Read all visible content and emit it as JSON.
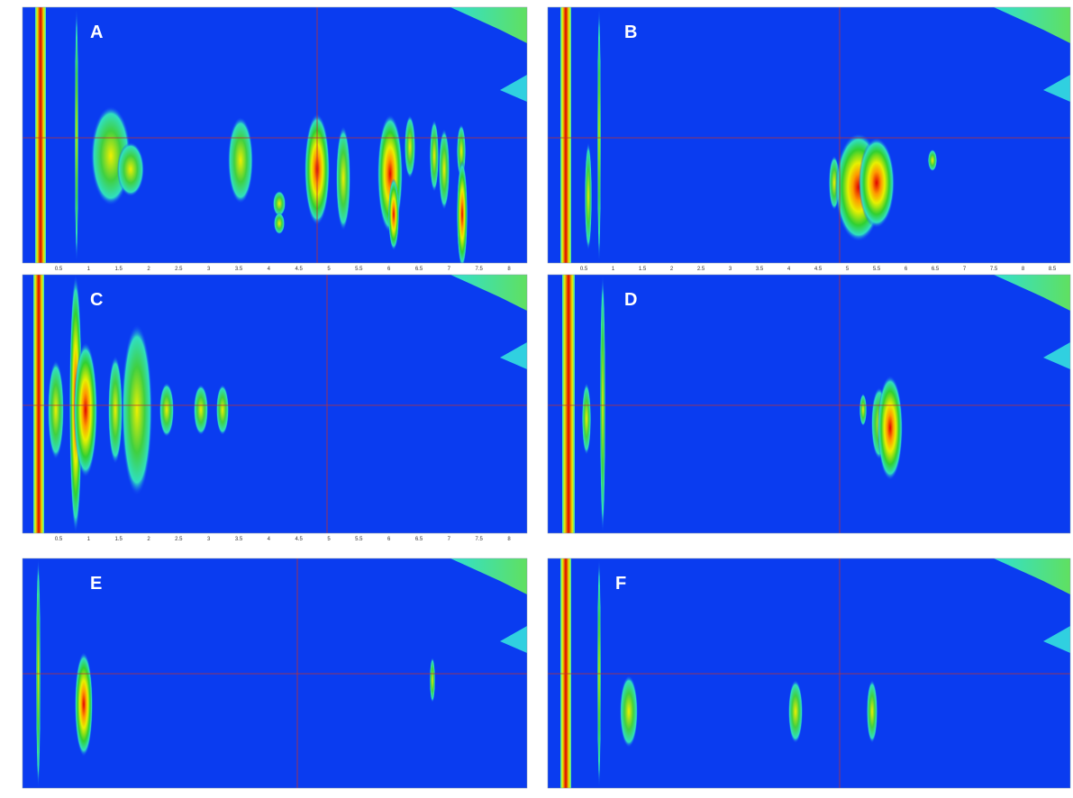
{
  "panels": [
    {
      "label": "A",
      "xticks": [
        "0.5",
        "1",
        "1.5",
        "2",
        "2.5",
        "3",
        "3.5",
        "4",
        "4.5",
        "5",
        "5.5",
        "6",
        "6.5",
        "7",
        "7.5",
        "8"
      ]
    },
    {
      "label": "B",
      "xticks": [
        "0.5",
        "1",
        "1.5",
        "2",
        "2.5",
        "3",
        "3.5",
        "4",
        "4.5",
        "5",
        "5.5",
        "6",
        "6.5",
        "7",
        "7.5",
        "8",
        "8.5"
      ]
    },
    {
      "label": "C",
      "xticks": [
        "0.5",
        "1",
        "1.5",
        "2",
        "2.5",
        "3",
        "3.5",
        "4",
        "4.5",
        "5",
        "5.5",
        "6",
        "6.5",
        "7",
        "7.5",
        "8"
      ]
    },
    {
      "label": "D",
      "xticks": []
    },
    {
      "label": "E",
      "xticks": []
    },
    {
      "label": "F",
      "xticks": []
    }
  ]
}
